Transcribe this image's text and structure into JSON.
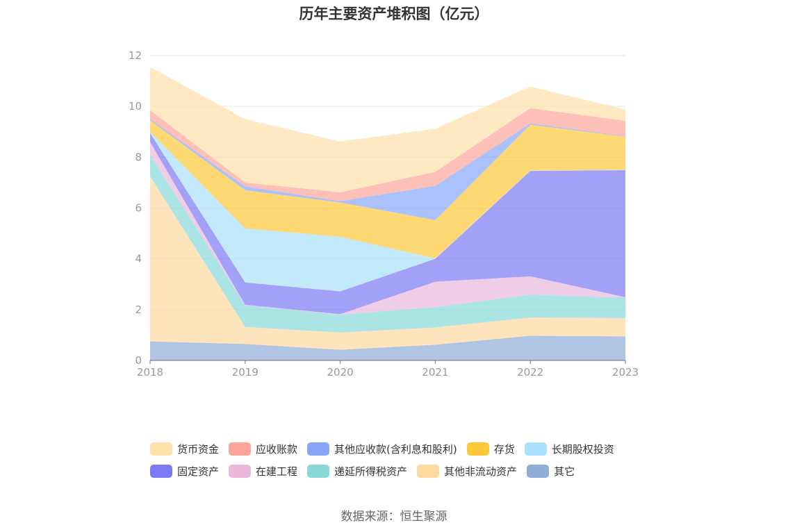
{
  "chart_data": {
    "type": "area",
    "stacked": true,
    "title": "历年主要资产堆积图（亿元）",
    "xlabel": "",
    "ylabel": "",
    "categories": [
      "2018",
      "2019",
      "2020",
      "2021",
      "2022",
      "2023"
    ],
    "ylim": [
      0,
      12
    ],
    "yticks": [
      "0",
      "2",
      "4",
      "6",
      "8",
      "10",
      "12"
    ],
    "grid": true,
    "legend_position": "bottom",
    "series": [
      {
        "name": "其它",
        "color": "#8fadd9",
        "values": [
          0.75,
          0.65,
          0.42,
          0.62,
          0.97,
          0.95
        ]
      },
      {
        "name": "其他非流动资产",
        "color": "#fdd9a0",
        "values": [
          6.5,
          0.67,
          0.68,
          0.68,
          0.72,
          0.72
        ]
      },
      {
        "name": "递延所得税资产",
        "color": "#88d8d8",
        "values": [
          0.85,
          0.85,
          0.7,
          0.8,
          0.9,
          0.8
        ]
      },
      {
        "name": "在建工程",
        "color": "#e9b8dc",
        "values": [
          0.5,
          0.02,
          0.02,
          1.0,
          0.72,
          0.02
        ]
      },
      {
        "name": "固定资产",
        "color": "#7b79f3",
        "values": [
          0.35,
          0.88,
          0.9,
          0.9,
          4.15,
          5.0
        ]
      },
      {
        "name": "长期股权投资",
        "color": "#a9e1fa",
        "values": [
          0.05,
          2.13,
          2.15,
          0.02,
          0.02,
          0.02
        ]
      },
      {
        "name": "存货",
        "color": "#fdc838",
        "values": [
          0.45,
          1.5,
          1.35,
          1.5,
          1.8,
          1.3
        ]
      },
      {
        "name": "其他应收款(含利息和股利)",
        "color": "#87a6fb",
        "values": [
          0.05,
          0.15,
          0.05,
          1.35,
          0.05,
          0.02
        ]
      },
      {
        "name": "应收账款",
        "color": "#fba59a",
        "values": [
          0.35,
          0.15,
          0.35,
          0.55,
          0.6,
          0.6
        ]
      },
      {
        "name": "货币资金",
        "color": "#fee0a9",
        "values": [
          1.7,
          2.5,
          2.0,
          1.7,
          0.85,
          0.45
        ]
      }
    ],
    "legend_order": [
      "货币资金",
      "应收账款",
      "其他应收款(含利息和股利)",
      "存货",
      "长期股权投资",
      "固定资产",
      "在建工程",
      "递延所得税资产",
      "其他非流动资产",
      "其它"
    ]
  },
  "legend": {
    "row1": [
      {
        "label": "货币资金",
        "color": "#fee0a9"
      },
      {
        "label": "应收账款",
        "color": "#fba59a"
      },
      {
        "label": "其他应收款(含利息和股利)",
        "color": "#87a6fb"
      },
      {
        "label": "存货",
        "color": "#fdc838"
      },
      {
        "label": "长期股权投资",
        "color": "#a9e1fa"
      }
    ],
    "row2": [
      {
        "label": "固定资产",
        "color": "#7b79f3"
      },
      {
        "label": "在建工程",
        "color": "#e9b8dc"
      },
      {
        "label": "递延所得税资产",
        "color": "#88d8d8"
      },
      {
        "label": "其他非流动资产",
        "color": "#fdd9a0"
      },
      {
        "label": "其它",
        "color": "#8fadd9"
      }
    ]
  },
  "source": "数据来源：恒生聚源"
}
